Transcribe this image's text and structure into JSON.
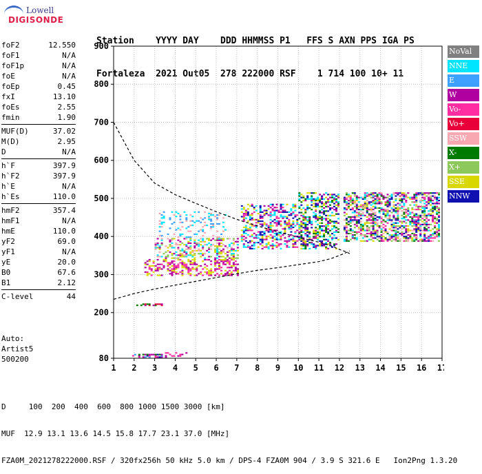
{
  "logo": {
    "line1": "Lowell",
    "line2": "DIGISONDE"
  },
  "header": {
    "labels": "Station    YYYY DAY    DDD HHMMSS P1   FFS S AXN PPS IGA PS",
    "values": "Fortaleza  2021 Out05  278 222000 RSF    1 714 100 10+ 11"
  },
  "params": [
    [
      {
        "label": "foF2",
        "value": "12.550"
      },
      {
        "label": "foF1",
        "value": "N/A"
      },
      {
        "label": "foF1p",
        "value": "N/A"
      },
      {
        "label": "foE",
        "value": "N/A"
      },
      {
        "label": "foEp",
        "value": "0.45"
      },
      {
        "label": "fxI",
        "value": "13.10"
      },
      {
        "label": "foEs",
        "value": "2.55"
      },
      {
        "label": "fmin",
        "value": "1.90"
      }
    ],
    [
      {
        "label": "MUF(D)",
        "value": "37.02"
      },
      {
        "label": "M(D)",
        "value": "2.95"
      },
      {
        "label": "D",
        "value": "N/A"
      }
    ],
    [
      {
        "label": "h`F",
        "value": "397.9"
      },
      {
        "label": "h`F2",
        "value": "397.9"
      },
      {
        "label": "h`E",
        "value": "N/A"
      },
      {
        "label": "h`Es",
        "value": "110.0"
      }
    ],
    [
      {
        "label": "hmF2",
        "value": "357.4"
      },
      {
        "label": "hmF1",
        "value": "N/A"
      },
      {
        "label": "hmE",
        "value": "110.0"
      },
      {
        "label": "yF2",
        "value": "69.0"
      },
      {
        "label": "yF1",
        "value": "N/A"
      },
      {
        "label": "yE",
        "value": "20.0"
      },
      {
        "label": "B0",
        "value": "67.6"
      },
      {
        "label": "B1",
        "value": "2.12"
      }
    ],
    [
      {
        "label": "C-level",
        "value": "44"
      }
    ]
  ],
  "auto": {
    "line1": "Auto:",
    "line2": "Artist5",
    "line3": "500200"
  },
  "legend": [
    {
      "label": "NoVal",
      "color": "#808080"
    },
    {
      "label": "NNE",
      "color": "#00e5ff"
    },
    {
      "label": "E",
      "color": "#3ea0ff"
    },
    {
      "label": "W",
      "color": "#b000a0"
    },
    {
      "label": "Vo-",
      "color": "#ff2da0"
    },
    {
      "label": "Vo+",
      "color": "#e8003a"
    },
    {
      "label": "SSW",
      "color": "#f7a8b0"
    },
    {
      "label": "X-",
      "color": "#007a00"
    },
    {
      "label": "X+",
      "color": "#8cc85a"
    },
    {
      "label": "SSE",
      "color": "#d8d800"
    },
    {
      "label": "NNW",
      "color": "#1010b0"
    }
  ],
  "footer": {
    "line1": "D     100  200  400  600  800 1000 1500 3000 [km]",
    "line2": "MUF  12.9 13.1 13.6 14.5 15.8 17.7 23.1 37.0 [MHz]",
    "line3": "FZA0M_2021278222000.RSF / 320fx256h 50 kHz 5.0 km / DPS-4 FZA0M 904 / 3.9 S 321.6 E   Ion2Png 1.3.20"
  },
  "chart_data": {
    "type": "scatter",
    "xlim": [
      1,
      17
    ],
    "ylim": [
      80,
      900
    ],
    "xticks": [
      1,
      2,
      3,
      4,
      5,
      6,
      7,
      8,
      9,
      10,
      11,
      12,
      13,
      14,
      15,
      16,
      17
    ],
    "yticks": [
      80,
      200,
      300,
      400,
      500,
      600,
      700,
      800,
      900
    ],
    "grid": true,
    "clusters": [
      {
        "x": [
          1.9,
          3.6
        ],
        "y": [
          85,
          95
        ],
        "colors": [
          "#1010b0",
          "#007a00",
          "#b000a0",
          "#ff2da0",
          "#3ea0ff"
        ],
        "density": 0.55
      },
      {
        "x": [
          3.5,
          4.6
        ],
        "y": [
          88,
          100
        ],
        "colors": [
          "#b000a0",
          "#ff2da0"
        ],
        "density": 0.4
      },
      {
        "x": [
          2.1,
          3.4
        ],
        "y": [
          221,
          227
        ],
        "colors": [
          "#e8003a",
          "#007a00",
          "#b000a0"
        ],
        "density": 0.6
      },
      {
        "x": [
          2.5,
          7.1
        ],
        "y": [
          300,
          345
        ],
        "colors": [
          "#b000a0",
          "#ff2da0",
          "#d8d800"
        ],
        "density": 0.45
      },
      {
        "x": [
          3.0,
          7.1
        ],
        "y": [
          345,
          400
        ],
        "colors": [
          "#d8d800",
          "#8cc85a",
          "#f7a8b0",
          "#00e5ff",
          "#b000a0"
        ],
        "density": 0.4
      },
      {
        "x": [
          3.2,
          6.5
        ],
        "y": [
          400,
          470
        ],
        "colors": [
          "#3ea0ff",
          "#00e5ff",
          "#f7a8b0"
        ],
        "density": 0.18
      },
      {
        "x": [
          7.2,
          10.0
        ],
        "y": [
          370,
          490
        ],
        "colors": [
          "#b000a0",
          "#ff2da0",
          "#1010b0",
          "#d8d800",
          "#00e5ff"
        ],
        "density": 0.45
      },
      {
        "x": [
          10.0,
          12.0
        ],
        "y": [
          370,
          520
        ],
        "colors": [
          "#1010b0",
          "#b000a0",
          "#007a00",
          "#00e5ff",
          "#d8d800"
        ],
        "density": 0.45
      },
      {
        "x": [
          12.2,
          16.9
        ],
        "y": [
          390,
          520
        ],
        "colors": [
          "#1010b0",
          "#00e5ff",
          "#b000a0",
          "#ff2da0",
          "#007a00",
          "#d8d800",
          "#8cc85a",
          "#f7a8b0"
        ],
        "density": 0.55
      }
    ],
    "curves": [
      {
        "name": "",
        "points": [
          [
            1,
            700
          ],
          [
            2,
            600
          ],
          [
            3,
            540
          ],
          [
            4,
            510
          ],
          [
            5,
            487
          ],
          [
            6,
            465
          ],
          [
            7,
            445
          ],
          [
            8,
            428
          ],
          [
            9,
            412
          ],
          [
            10,
            398
          ],
          [
            11,
            385
          ],
          [
            11.6,
            375
          ],
          [
            12.0,
            366
          ],
          [
            12.3,
            360
          ],
          [
            12.5,
            355
          ]
        ]
      },
      {
        "name": "",
        "points": [
          [
            1,
            235
          ],
          [
            2,
            250
          ],
          [
            3,
            262
          ],
          [
            4,
            272
          ],
          [
            5,
            282
          ],
          [
            6,
            292
          ],
          [
            7,
            302
          ],
          [
            8,
            311
          ],
          [
            9,
            318
          ],
          [
            10,
            326
          ],
          [
            11,
            334
          ],
          [
            11.6,
            342
          ],
          [
            12.0,
            350
          ],
          [
            12.3,
            357
          ],
          [
            12.5,
            362
          ]
        ]
      }
    ]
  }
}
